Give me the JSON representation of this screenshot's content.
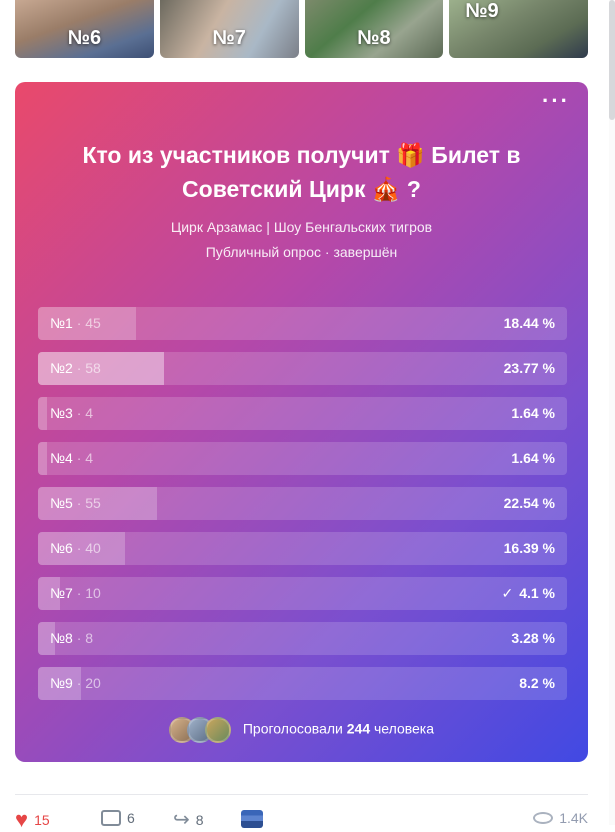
{
  "thumbnails": [
    {
      "label": "№6"
    },
    {
      "label": "№7"
    },
    {
      "label": "№8"
    },
    {
      "label": "№9"
    }
  ],
  "poll": {
    "title": "Кто из участников получит 🎁 Билет в Советский Цирк 🎪 ?",
    "subtitle": "Цирк Арзамас | Шоу Бенгальских тигров",
    "status": "Публичный опрос · завершён",
    "menu": "···",
    "options": [
      {
        "name": "№1",
        "votes": "45",
        "percent": "18.44 %",
        "value": 18.44,
        "checked": false
      },
      {
        "name": "№2",
        "votes": "58",
        "percent": "23.77 %",
        "value": 23.77,
        "checked": false
      },
      {
        "name": "№3",
        "votes": "4",
        "percent": "1.64 %",
        "value": 1.64,
        "checked": false
      },
      {
        "name": "№4",
        "votes": "4",
        "percent": "1.64 %",
        "value": 1.64,
        "checked": false
      },
      {
        "name": "№5",
        "votes": "55",
        "percent": "22.54 %",
        "value": 22.54,
        "checked": false
      },
      {
        "name": "№6",
        "votes": "40",
        "percent": "16.39 %",
        "value": 16.39,
        "checked": false
      },
      {
        "name": "№7",
        "votes": "10",
        "percent": "4.1 %",
        "value": 4.1,
        "checked": true
      },
      {
        "name": "№8",
        "votes": "8",
        "percent": "3.28 %",
        "value": 3.28,
        "checked": false
      },
      {
        "name": "№9",
        "votes": "20",
        "percent": "8.2 %",
        "value": 8.2,
        "checked": false
      }
    ],
    "voters_prefix": "Проголосовали",
    "voters_count": "244",
    "voters_suffix": "человека"
  },
  "actions": {
    "likes": "15",
    "comments": "6",
    "shares": "8",
    "views": "1.4K"
  },
  "colors": {
    "gradient_start": "#e9496b",
    "gradient_end": "#4149e3",
    "like": "#e64646"
  }
}
